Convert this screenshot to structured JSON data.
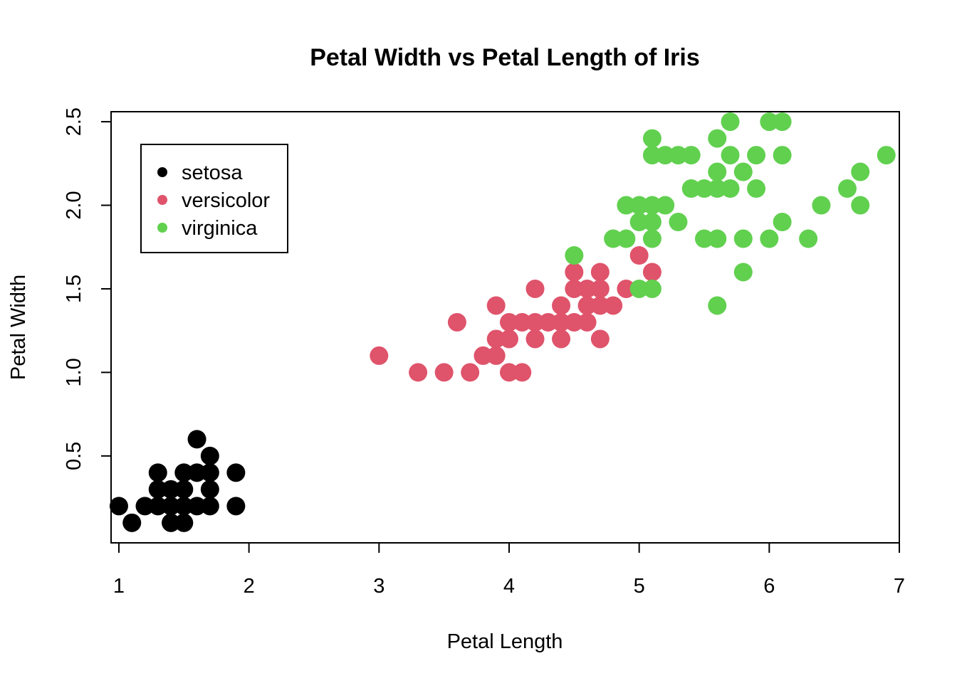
{
  "chart_data": {
    "type": "scatter",
    "title": "Petal Width vs Petal Length of Iris",
    "xlabel": "Petal Length",
    "ylabel": "Petal Width",
    "xlim": [
      0.94,
      7.0
    ],
    "ylim": [
      -0.02,
      2.56
    ],
    "xticks": [
      1,
      2,
      3,
      4,
      5,
      6,
      7
    ],
    "yticks": [
      0.5,
      1.0,
      1.5,
      2.0,
      2.5
    ],
    "xtick_labels": [
      "1",
      "2",
      "3",
      "4",
      "5",
      "6",
      "7"
    ],
    "ytick_labels": [
      "0.5",
      "1.0",
      "1.5",
      "2.0",
      "2.5"
    ],
    "grid": false,
    "legend_position": "top-left",
    "series": [
      {
        "name": "setosa",
        "color": "#000000",
        "points": [
          [
            1.0,
            0.2
          ],
          [
            1.1,
            0.1
          ],
          [
            1.2,
            0.2
          ],
          [
            1.3,
            0.2
          ],
          [
            1.3,
            0.3
          ],
          [
            1.3,
            0.4
          ],
          [
            1.4,
            0.1
          ],
          [
            1.4,
            0.2
          ],
          [
            1.4,
            0.3
          ],
          [
            1.5,
            0.1
          ],
          [
            1.5,
            0.2
          ],
          [
            1.5,
            0.3
          ],
          [
            1.5,
            0.4
          ],
          [
            1.6,
            0.2
          ],
          [
            1.6,
            0.4
          ],
          [
            1.6,
            0.6
          ],
          [
            1.7,
            0.2
          ],
          [
            1.7,
            0.3
          ],
          [
            1.7,
            0.4
          ],
          [
            1.7,
            0.5
          ],
          [
            1.9,
            0.2
          ],
          [
            1.9,
            0.4
          ]
        ]
      },
      {
        "name": "versicolor",
        "color": "#DF536B",
        "points": [
          [
            3.0,
            1.1
          ],
          [
            3.3,
            1.0
          ],
          [
            3.5,
            1.0
          ],
          [
            3.6,
            1.3
          ],
          [
            3.7,
            1.0
          ],
          [
            3.8,
            1.1
          ],
          [
            3.9,
            1.1
          ],
          [
            3.9,
            1.2
          ],
          [
            3.9,
            1.4
          ],
          [
            4.0,
            1.0
          ],
          [
            4.0,
            1.2
          ],
          [
            4.0,
            1.3
          ],
          [
            4.1,
            1.0
          ],
          [
            4.1,
            1.3
          ],
          [
            4.2,
            1.2
          ],
          [
            4.2,
            1.3
          ],
          [
            4.2,
            1.5
          ],
          [
            4.3,
            1.3
          ],
          [
            4.4,
            1.2
          ],
          [
            4.4,
            1.3
          ],
          [
            4.4,
            1.4
          ],
          [
            4.5,
            1.3
          ],
          [
            4.5,
            1.5
          ],
          [
            4.5,
            1.6
          ],
          [
            4.6,
            1.3
          ],
          [
            4.6,
            1.4
          ],
          [
            4.6,
            1.5
          ],
          [
            4.7,
            1.2
          ],
          [
            4.7,
            1.4
          ],
          [
            4.7,
            1.5
          ],
          [
            4.7,
            1.6
          ],
          [
            4.8,
            1.4
          ],
          [
            4.9,
            1.5
          ],
          [
            5.0,
            1.7
          ],
          [
            5.1,
            1.6
          ]
        ]
      },
      {
        "name": "virginica",
        "color": "#61D04F",
        "points": [
          [
            4.5,
            1.7
          ],
          [
            4.8,
            1.8
          ],
          [
            4.9,
            1.8
          ],
          [
            4.9,
            2.0
          ],
          [
            5.0,
            1.5
          ],
          [
            5.0,
            1.9
          ],
          [
            5.0,
            2.0
          ],
          [
            5.1,
            1.5
          ],
          [
            5.1,
            1.8
          ],
          [
            5.1,
            1.9
          ],
          [
            5.1,
            2.0
          ],
          [
            5.1,
            2.3
          ],
          [
            5.1,
            2.4
          ],
          [
            5.2,
            2.0
          ],
          [
            5.2,
            2.3
          ],
          [
            5.3,
            1.9
          ],
          [
            5.3,
            2.3
          ],
          [
            5.4,
            2.1
          ],
          [
            5.4,
            2.3
          ],
          [
            5.5,
            1.8
          ],
          [
            5.5,
            2.1
          ],
          [
            5.6,
            1.4
          ],
          [
            5.6,
            1.8
          ],
          [
            5.6,
            2.1
          ],
          [
            5.6,
            2.2
          ],
          [
            5.6,
            2.4
          ],
          [
            5.7,
            2.1
          ],
          [
            5.7,
            2.3
          ],
          [
            5.7,
            2.5
          ],
          [
            5.8,
            1.6
          ],
          [
            5.8,
            1.8
          ],
          [
            5.8,
            2.2
          ],
          [
            5.9,
            2.1
          ],
          [
            5.9,
            2.3
          ],
          [
            6.0,
            1.8
          ],
          [
            6.0,
            2.5
          ],
          [
            6.1,
            1.9
          ],
          [
            6.1,
            2.3
          ],
          [
            6.1,
            2.5
          ],
          [
            6.3,
            1.8
          ],
          [
            6.4,
            2.0
          ],
          [
            6.6,
            2.1
          ],
          [
            6.7,
            2.0
          ],
          [
            6.7,
            2.2
          ],
          [
            6.9,
            2.3
          ]
        ]
      }
    ]
  }
}
